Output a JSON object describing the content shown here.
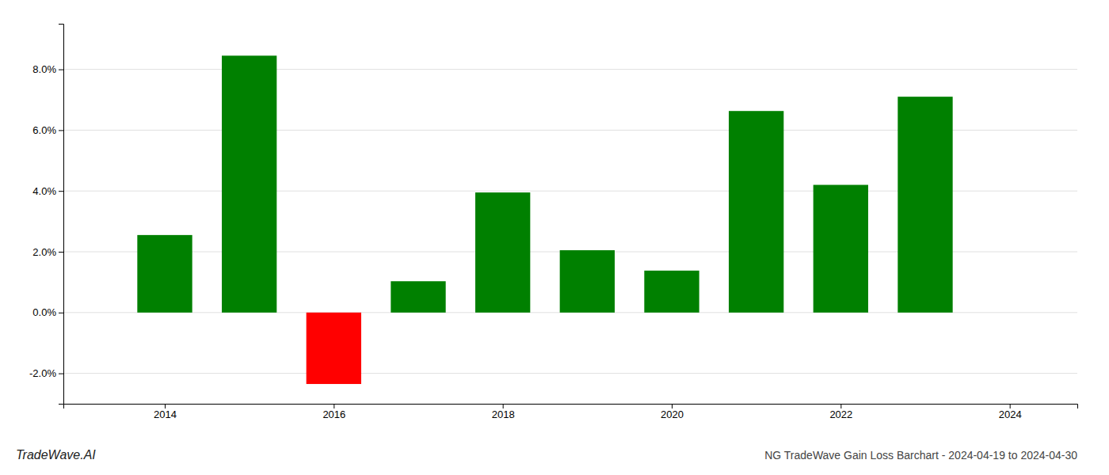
{
  "chart_data": {
    "type": "bar",
    "title": "NG TradeWave Gain Loss Barchart - 2024-04-19 to 2024-04-30",
    "annotations": [
      "TradeWave.AI"
    ],
    "x": [
      2014,
      2015,
      2016,
      2017,
      2018,
      2019,
      2020,
      2021,
      2022,
      2023
    ],
    "values": [
      0.0255,
      0.0845,
      -0.0235,
      0.0103,
      0.0395,
      0.0205,
      0.0138,
      0.0663,
      0.042,
      0.071
    ],
    "colors": [
      "#008000",
      "#008000",
      "#ff0000",
      "#008000",
      "#008000",
      "#008000",
      "#008000",
      "#008000",
      "#008000",
      "#008000"
    ],
    "xlim": [
      2012.8,
      2024.8
    ],
    "xticks": [
      2014,
      2016,
      2018,
      2020,
      2022,
      2024
    ],
    "ylim": [
      -0.03,
      0.095
    ],
    "yticks": [
      {
        "value": -0.02,
        "label": "-2.0%"
      },
      {
        "value": 0.0,
        "label": "0.0%"
      },
      {
        "value": 0.02,
        "label": "2.0%"
      },
      {
        "value": 0.04,
        "label": "4.0%"
      },
      {
        "value": 0.06,
        "label": "6.0%"
      },
      {
        "value": 0.08,
        "label": "8.0%"
      }
    ],
    "grid": true
  }
}
